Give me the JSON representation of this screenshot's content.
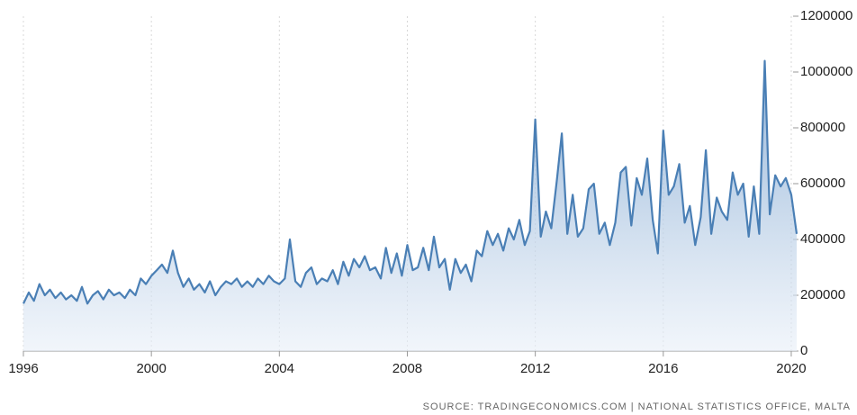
{
  "chart_data": {
    "type": "area",
    "source": "SOURCE: TRADINGECONOMICS.COM | NATIONAL STATISTICS OFFICE, MALTA",
    "color": "#4a7fb5",
    "x": [
      1996,
      1996.17,
      1996.33,
      1996.5,
      1996.67,
      1996.83,
      1997,
      1997.17,
      1997.33,
      1997.5,
      1997.67,
      1997.83,
      1998,
      1998.17,
      1998.33,
      1998.5,
      1998.67,
      1998.83,
      1999,
      1999.17,
      1999.33,
      1999.5,
      1999.67,
      1999.83,
      2000,
      2000.17,
      2000.33,
      2000.5,
      2000.67,
      2000.83,
      2001,
      2001.17,
      2001.33,
      2001.5,
      2001.67,
      2001.83,
      2002,
      2002.17,
      2002.33,
      2002.5,
      2002.67,
      2002.83,
      2003,
      2003.17,
      2003.33,
      2003.5,
      2003.67,
      2003.83,
      2004,
      2004.17,
      2004.33,
      2004.5,
      2004.67,
      2004.83,
      2005,
      2005.17,
      2005.33,
      2005.5,
      2005.67,
      2005.83,
      2006,
      2006.17,
      2006.33,
      2006.5,
      2006.67,
      2006.83,
      2007,
      2007.17,
      2007.33,
      2007.5,
      2007.67,
      2007.83,
      2008,
      2008.17,
      2008.33,
      2008.5,
      2008.67,
      2008.83,
      2009,
      2009.17,
      2009.33,
      2009.5,
      2009.67,
      2009.83,
      2010,
      2010.17,
      2010.33,
      2010.5,
      2010.67,
      2010.83,
      2011,
      2011.17,
      2011.33,
      2011.5,
      2011.67,
      2011.83,
      2012,
      2012.17,
      2012.33,
      2012.5,
      2012.67,
      2012.83,
      2013,
      2013.17,
      2013.33,
      2013.5,
      2013.67,
      2013.83,
      2014,
      2014.17,
      2014.33,
      2014.5,
      2014.67,
      2014.83,
      2015,
      2015.17,
      2015.33,
      2015.5,
      2015.67,
      2015.83,
      2016,
      2016.17,
      2016.33,
      2016.5,
      2016.67,
      2016.83,
      2017,
      2017.17,
      2017.33,
      2017.5,
      2017.67,
      2017.83,
      2018,
      2018.17,
      2018.33,
      2018.5,
      2018.67,
      2018.83,
      2019,
      2019.17,
      2019.33,
      2019.5,
      2019.67,
      2019.83,
      2020,
      2020.17
    ],
    "values": [
      170000,
      210000,
      180000,
      240000,
      200000,
      220000,
      190000,
      210000,
      185000,
      200000,
      180000,
      230000,
      170000,
      200000,
      215000,
      185000,
      220000,
      200000,
      210000,
      190000,
      220000,
      200000,
      260000,
      240000,
      270000,
      290000,
      310000,
      280000,
      360000,
      280000,
      230000,
      260000,
      220000,
      240000,
      210000,
      250000,
      200000,
      230000,
      250000,
      240000,
      260000,
      230000,
      250000,
      230000,
      260000,
      240000,
      270000,
      250000,
      240000,
      260000,
      400000,
      250000,
      230000,
      280000,
      300000,
      240000,
      260000,
      250000,
      290000,
      240000,
      320000,
      270000,
      330000,
      300000,
      340000,
      290000,
      300000,
      260000,
      370000,
      280000,
      350000,
      270000,
      380000,
      290000,
      300000,
      370000,
      290000,
      410000,
      300000,
      330000,
      220000,
      330000,
      280000,
      310000,
      250000,
      360000,
      340000,
      430000,
      380000,
      420000,
      360000,
      440000,
      400000,
      470000,
      380000,
      430000,
      830000,
      410000,
      500000,
      440000,
      610000,
      780000,
      420000,
      560000,
      410000,
      440000,
      580000,
      600000,
      420000,
      460000,
      380000,
      460000,
      640000,
      660000,
      450000,
      620000,
      560000,
      690000,
      470000,
      350000,
      790000,
      560000,
      590000,
      670000,
      460000,
      520000,
      380000,
      480000,
      720000,
      420000,
      550000,
      500000,
      470000,
      640000,
      560000,
      600000,
      410000,
      590000,
      420000,
      1040000,
      490000,
      630000,
      590000,
      620000,
      560000,
      420000
    ],
    "xlim": [
      1996,
      2020.17
    ],
    "xticks": [
      1996,
      2000,
      2004,
      2008,
      2012,
      2016,
      2020
    ],
    "ylim": [
      0,
      1200000
    ],
    "yticks": [
      0,
      200000,
      400000,
      600000,
      800000,
      1000000,
      1200000
    ],
    "grid": true
  }
}
